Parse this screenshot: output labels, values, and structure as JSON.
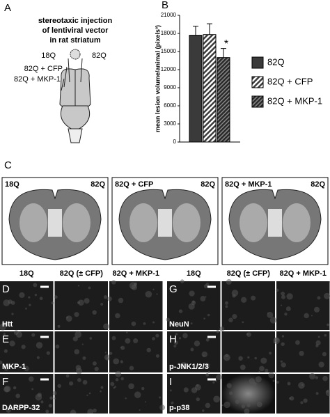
{
  "panel_a": {
    "label": "A",
    "title_lines": [
      "stereotaxic injection",
      "of lentiviral vector",
      "in rat striatum"
    ],
    "site_labels": [
      "18Q",
      "82Q",
      "82Q + CFP",
      "82Q + MKP-1"
    ]
  },
  "chart_data": {
    "type": "bar",
    "label": "B",
    "ylabel": "mean lesion volume/animal (pixels³)",
    "categories": [
      "82Q",
      "82Q + CFP",
      "82Q + MKP-1"
    ],
    "values": [
      17700,
      17800,
      14000
    ],
    "errors": [
      1500,
      1800,
      1500
    ],
    "colors": [
      "#3a3a3a",
      "#3a3a3a",
      "#3a3a3a"
    ],
    "patterns": [
      "solid",
      "hatch",
      "hatch-dense"
    ],
    "annotation": "*",
    "ylim": [
      0,
      21000
    ],
    "yticks": [
      0,
      3000,
      6000,
      9000,
      12000,
      15000,
      18000,
      21000
    ],
    "legend": "right"
  },
  "panel_c": {
    "label": "C",
    "images": [
      {
        "left": "18Q",
        "right": "82Q"
      },
      {
        "left": "82Q + CFP",
        "right": "82Q"
      },
      {
        "left": "82Q + MKP-1",
        "right": "82Q"
      }
    ]
  },
  "micrographs": [
    {
      "columns": [
        "18Q",
        "82Q (± CFP)",
        "82Q + MKP-1"
      ],
      "rows": [
        {
          "label": "D",
          "marker": "Htt"
        },
        {
          "label": "E",
          "marker": "MKP-1"
        },
        {
          "label": "F",
          "marker": "DARPP-32"
        }
      ]
    },
    {
      "columns": [
        "18Q",
        "82Q (± CFP)",
        "82Q + MKP-1"
      ],
      "rows": [
        {
          "label": "G",
          "marker": "NeuN"
        },
        {
          "label": "H",
          "marker": "p-JNK1/2/3"
        },
        {
          "label": "I",
          "marker": "p-p38"
        }
      ]
    }
  ]
}
